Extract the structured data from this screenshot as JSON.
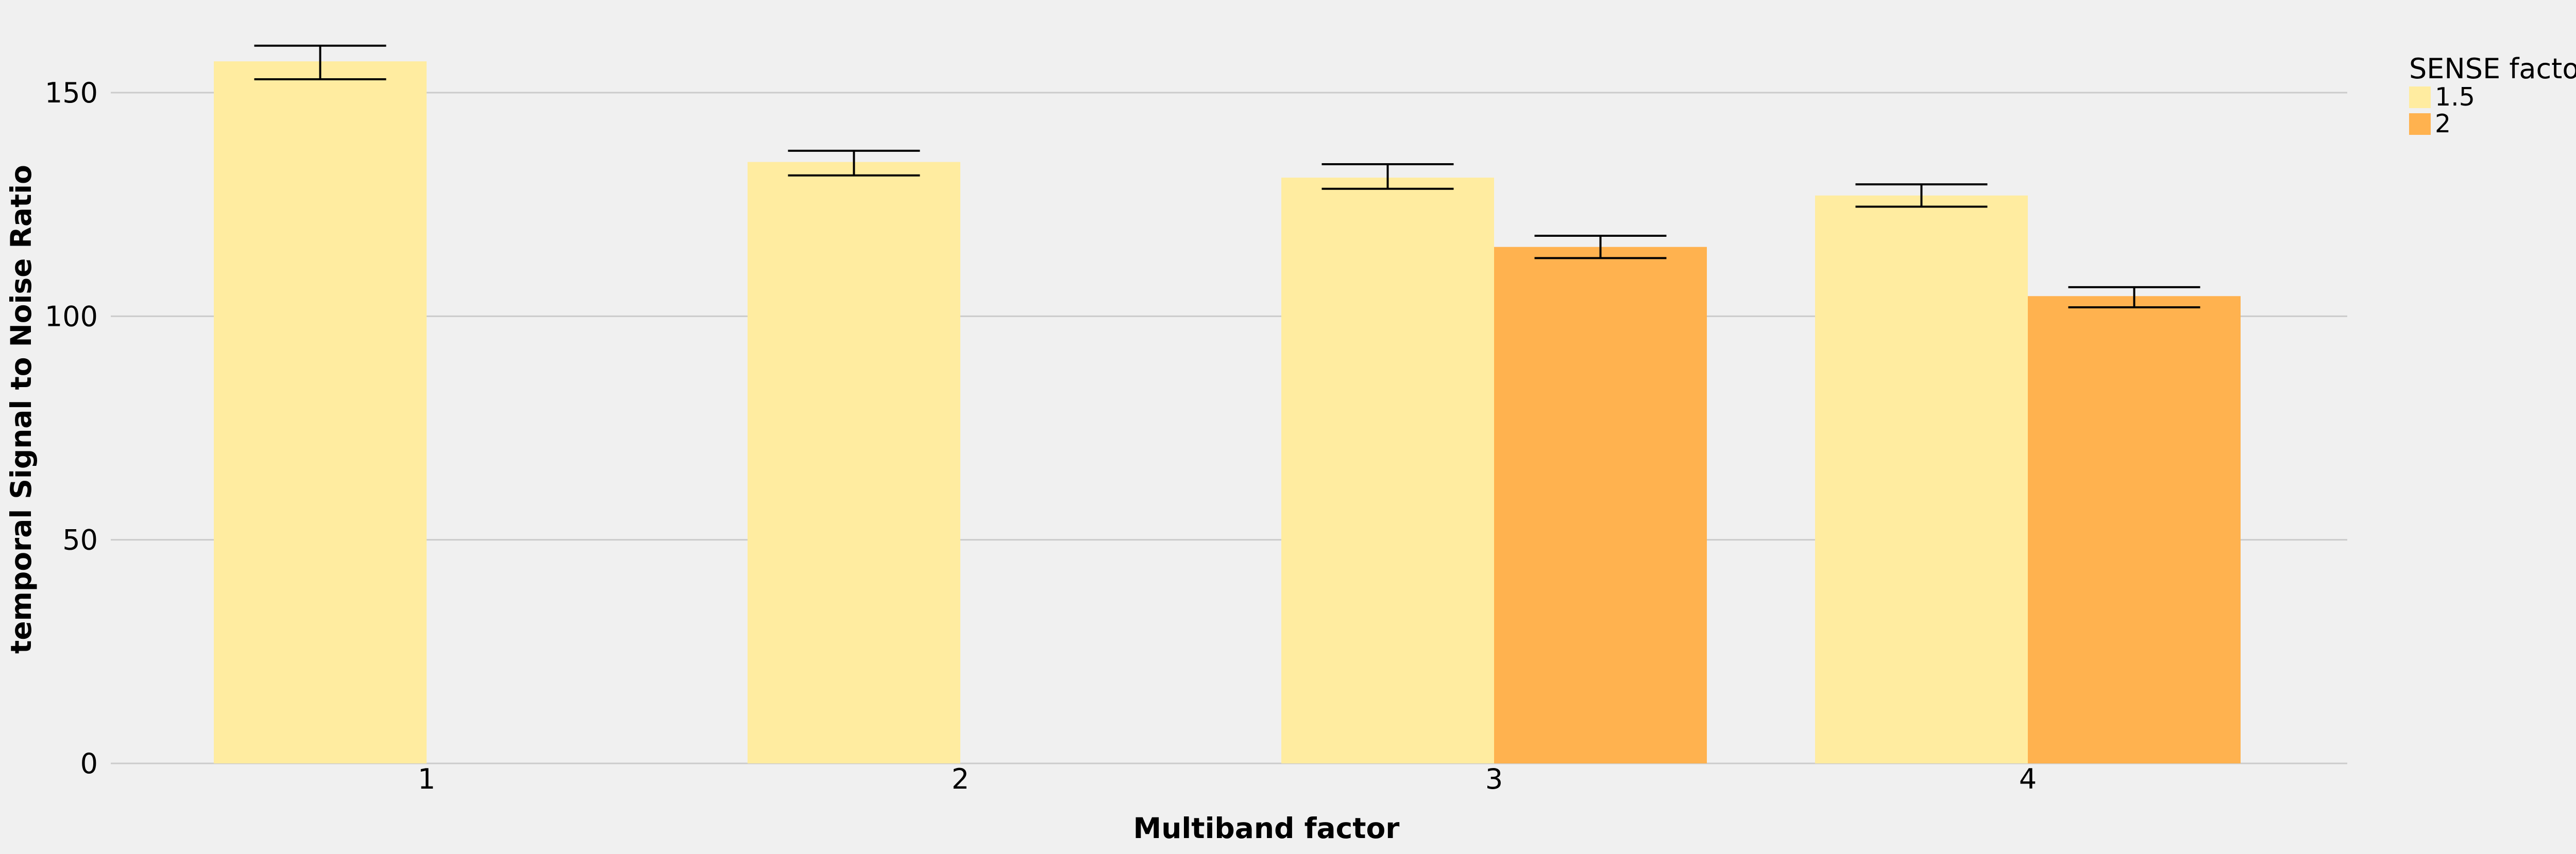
{
  "chart_data": {
    "type": "bar",
    "title": "",
    "xlabel": "Multiband factor",
    "ylabel": "temporal Signal to Noise Ratio",
    "categories": [
      "1",
      "2",
      "3",
      "4"
    ],
    "ylim": [
      0,
      165
    ],
    "yticks": [
      0,
      50,
      100,
      150
    ],
    "grid": "horizontal",
    "legend": {
      "title": "SENSE factor",
      "placement": "right"
    },
    "series": [
      {
        "name": "1.5",
        "color": "#ffeca0",
        "values": [
          157,
          134.5,
          131,
          127
        ],
        "error_low": [
          153,
          131.5,
          128.5,
          124.5
        ],
        "error_high": [
          160.5,
          137,
          134,
          129.5
        ]
      },
      {
        "name": "2",
        "color": "#ffb24f",
        "values": [
          null,
          null,
          115.5,
          104.5
        ],
        "error_low": [
          null,
          null,
          113,
          102
        ],
        "error_high": [
          null,
          null,
          118,
          106.5
        ]
      }
    ]
  },
  "colors": {
    "background": "#f0f0f0",
    "grid": "#cbcbcb",
    "errorbar": "#000000"
  }
}
